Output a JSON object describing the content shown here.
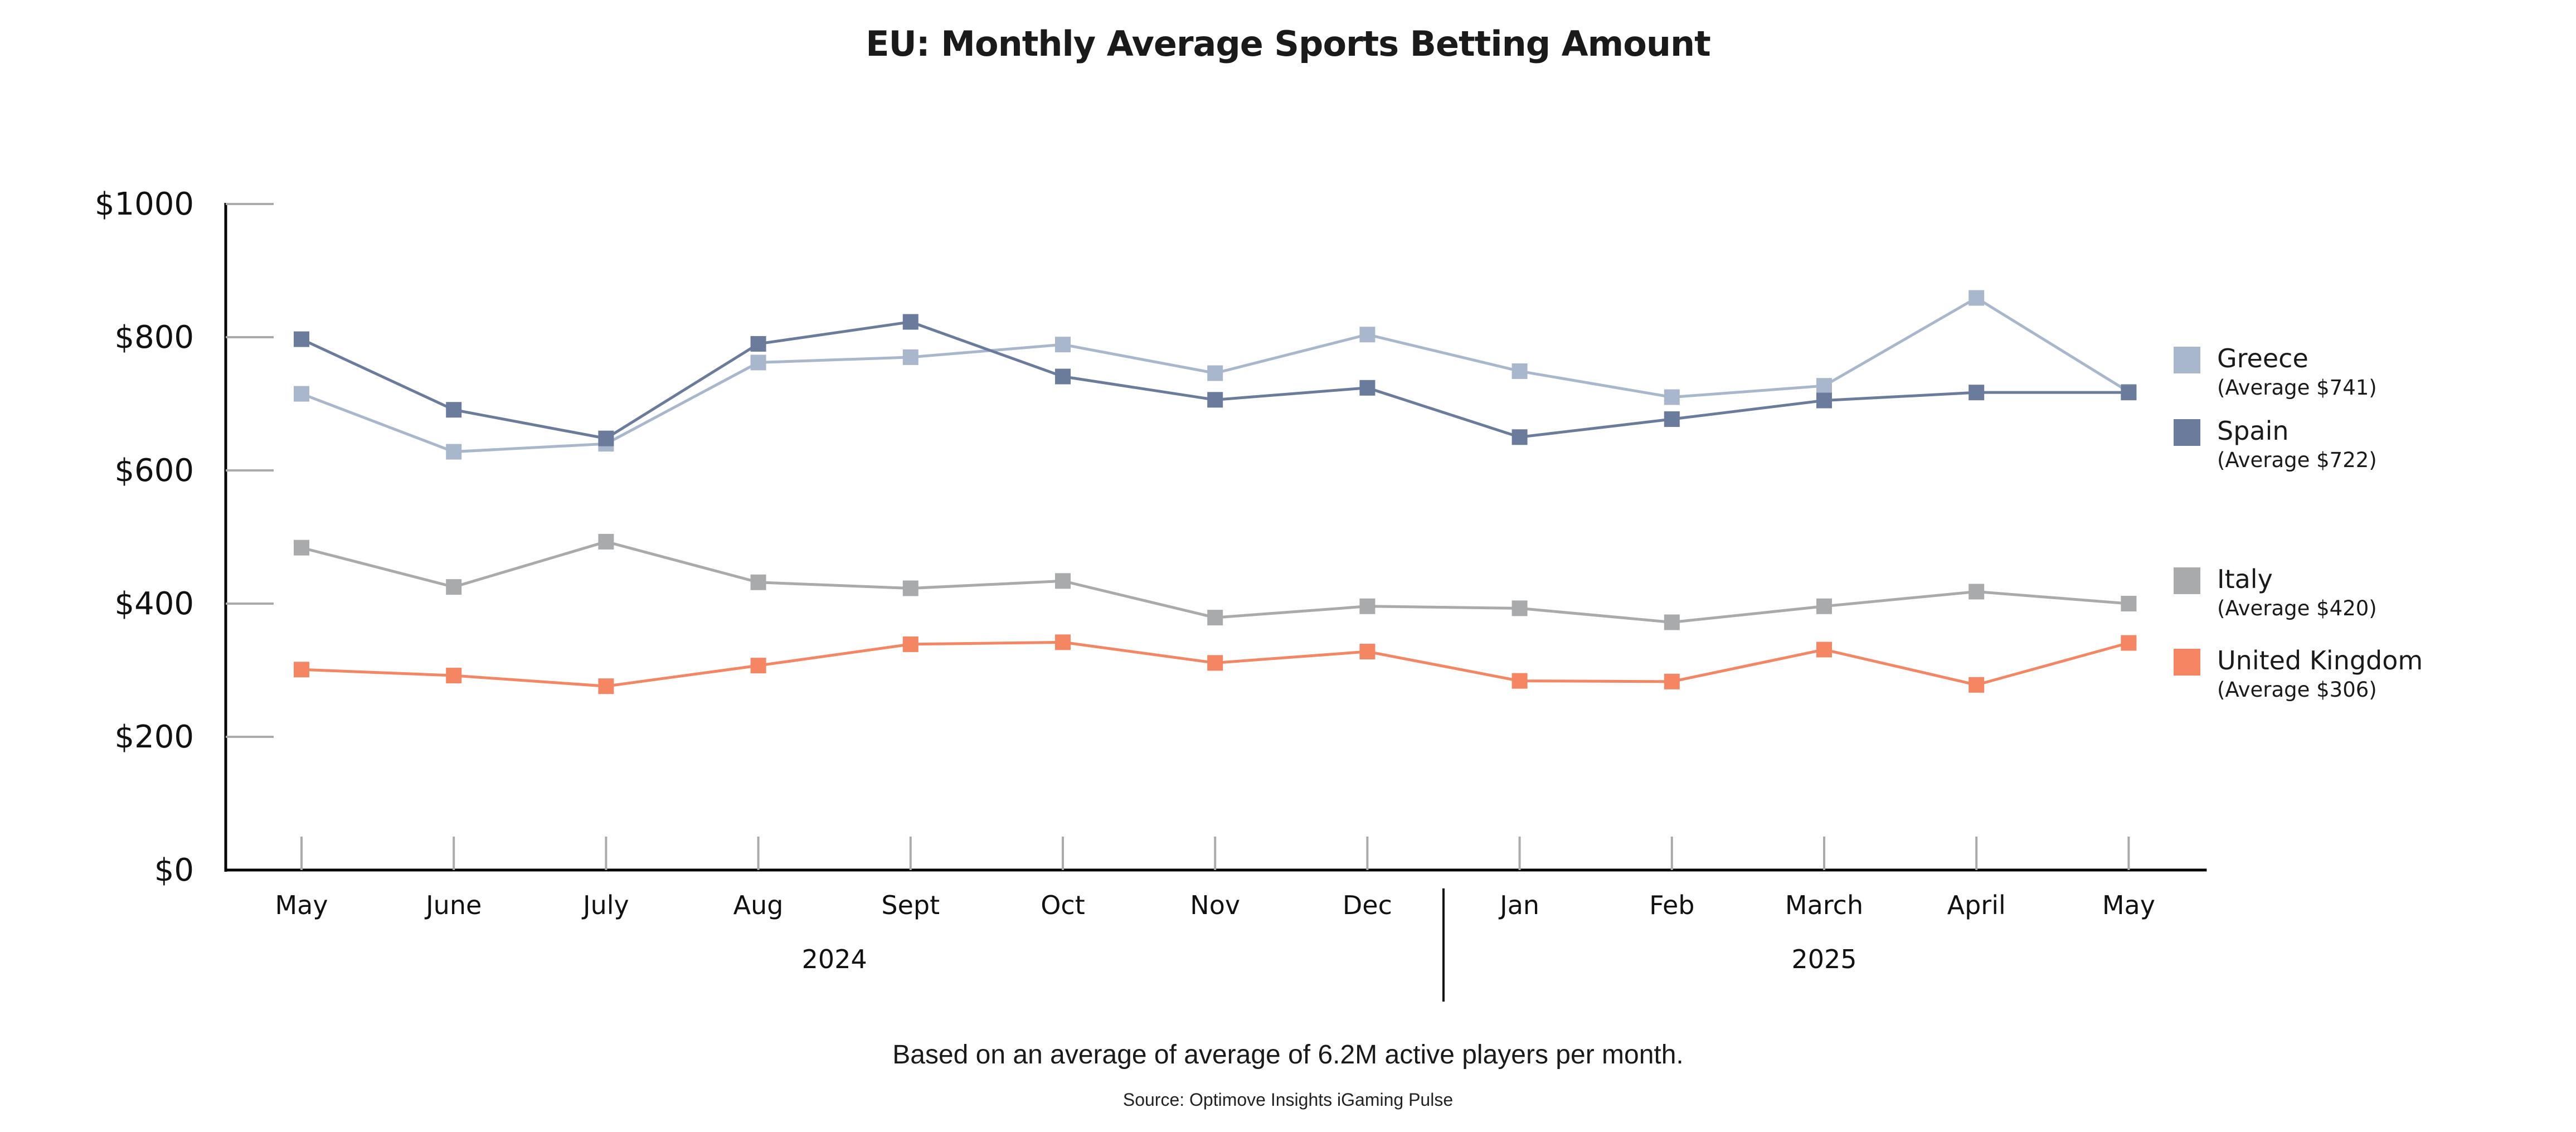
{
  "chart_data": {
    "type": "line",
    "title": "EU: Monthly Average Sports Betting Amount",
    "xlabel": "",
    "ylabel": "",
    "categories": [
      "May",
      "June",
      "July",
      "Aug",
      "Sept",
      "Oct",
      "Nov",
      "Dec",
      "Jan",
      "Feb",
      "March",
      "April",
      "May"
    ],
    "year_groups": [
      {
        "label": "2024",
        "start": 0,
        "end": 7
      },
      {
        "label": "2025",
        "start": 8,
        "end": 12
      }
    ],
    "ylim": [
      0,
      1000
    ],
    "yticks": [
      0,
      200,
      400,
      600,
      800,
      1000
    ],
    "ytick_labels": [
      "$0",
      "$200",
      "$400",
      "$600",
      "$800",
      "$1000"
    ],
    "grid": false,
    "legend_position": "right",
    "series": [
      {
        "name": "Greece",
        "average_label": "(Average $741)",
        "color": "#A9B7CC",
        "values": [
          715,
          628,
          640,
          762,
          770,
          789,
          746,
          804,
          749,
          710,
          727,
          859,
          718
        ]
      },
      {
        "name": "Spain",
        "average_label": "(Average $722)",
        "color": "#6B7B9C",
        "values": [
          797,
          691,
          648,
          790,
          823,
          741,
          706,
          724,
          650,
          677,
          705,
          717,
          717
        ]
      },
      {
        "name": "Italy",
        "average_label": "(Average $420)",
        "color": "#A9AAAC",
        "values": [
          484,
          425,
          493,
          432,
          423,
          434,
          379,
          396,
          393,
          372,
          396,
          418,
          400
        ]
      },
      {
        "name": "United Kingdom",
        "average_label": "(Average $306)",
        "color": "#F48663",
        "values": [
          301,
          292,
          276,
          307,
          339,
          342,
          311,
          328,
          284,
          283,
          331,
          278,
          341
        ]
      }
    ],
    "annotations": {
      "note": "Based on an average of average of 6.2M active players per month.",
      "source": "Source: Optimove Insights iGaming Pulse"
    }
  },
  "colors": {
    "axis": "#000000",
    "tick": "#AAAAAA"
  }
}
